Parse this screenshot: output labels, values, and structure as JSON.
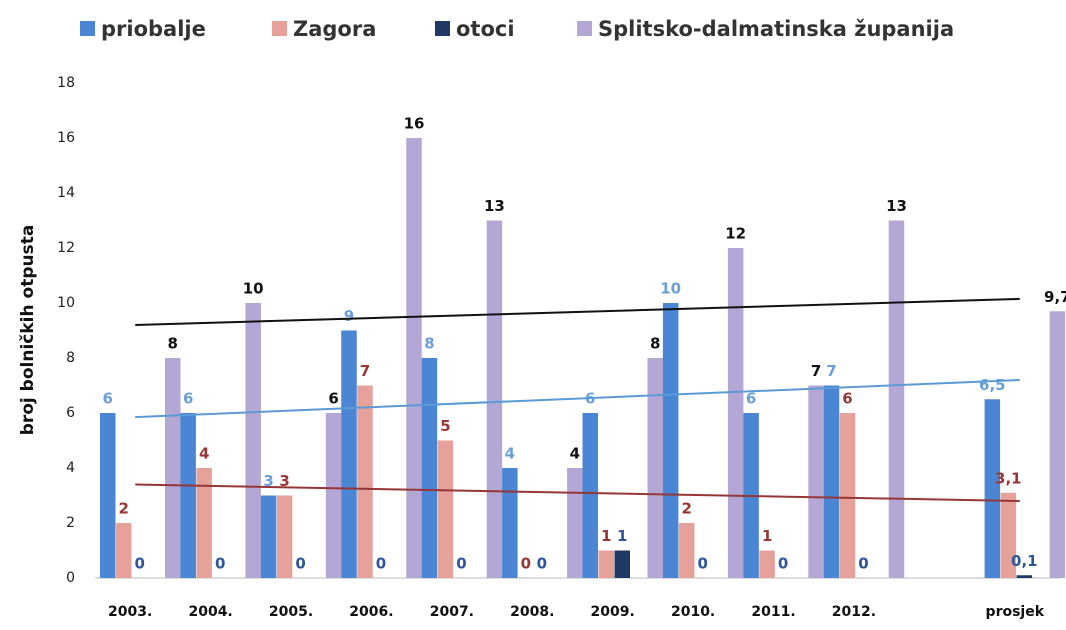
{
  "chart_data": {
    "type": "bar",
    "y_label": "broj bolničkih otpusta",
    "categories": [
      "2003.",
      "2004.",
      "2005.",
      "2006.",
      "2007.",
      "2008.",
      "2009.",
      "2010.",
      "2011.",
      "2012.",
      null,
      "prosjek"
    ],
    "ylim": [
      0,
      18
    ],
    "yticks": [
      0,
      2,
      4,
      6,
      8,
      10,
      12,
      14,
      16,
      18
    ],
    "legend": "top",
    "grid": false,
    "series": [
      {
        "name": "priobalje",
        "color": "#4a86d4",
        "label_color": "#6a9fd8",
        "values": [
          6,
          6,
          3,
          9,
          8,
          4,
          6,
          10,
          6,
          7,
          null,
          6.5
        ],
        "value_labels": [
          "6",
          "6",
          "3",
          "9",
          "8",
          "4",
          "6",
          "10",
          "6",
          "7",
          null,
          "6,5"
        ],
        "trend": [
          5.85,
          7.2
        ],
        "trend_color": "#5b9bd5"
      },
      {
        "name": "Zagora",
        "color": "#e6a19b",
        "label_color": "#953735",
        "values": [
          2,
          4,
          3,
          7,
          5,
          0,
          1,
          2,
          1,
          6,
          null,
          3.1
        ],
        "value_labels": [
          "2",
          "4",
          "3",
          "7",
          "5",
          "0",
          "1",
          "2",
          "1",
          "6",
          null,
          "3,1"
        ],
        "trend": [
          3.4,
          2.8
        ],
        "trend_color": "#953735"
      },
      {
        "name": "otoci",
        "color": "#1f3864",
        "label_color": "#2e5597",
        "values": [
          0,
          0,
          0,
          0,
          0,
          0,
          1,
          0,
          0,
          0,
          null,
          0.1
        ],
        "value_labels": [
          "0",
          "0",
          "0",
          "0",
          "0",
          "0",
          "1",
          "0",
          "0",
          "0",
          null,
          "0,1"
        ]
      },
      {
        "name": "Splitsko-dalmatinska županija",
        "color": "#b4a7d6",
        "label_color": "#111111",
        "values": [
          8,
          10,
          6,
          16,
          13,
          4,
          8,
          12,
          7,
          13,
          null,
          9.7
        ],
        "value_labels": [
          "8",
          "10",
          "6",
          "16",
          "13",
          "4",
          "8",
          "12",
          "7",
          "13",
          null,
          "9,7"
        ],
        "trend": [
          9.2,
          10.15
        ],
        "trend_color": "#111111"
      }
    ]
  }
}
